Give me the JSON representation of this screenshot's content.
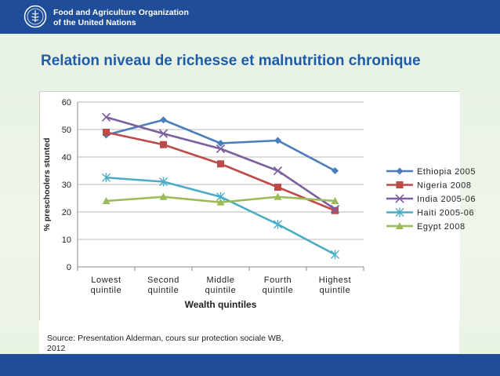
{
  "header": {
    "org_line1": "Food and Agriculture Organization",
    "org_line2": "of the United Nations",
    "logo_icon": "fao-logo-icon",
    "bar_color": "#1f4d9a"
  },
  "page_title": "Relation  niveau de richesse et malnutrition chronique",
  "source": {
    "line1": "Source: Presentation Alderman, cours sur protection sociale WB,",
    "line2": "2012"
  },
  "chart_data": {
    "type": "line",
    "xlabel": "Wealth quintiles",
    "ylabel": "% preschoolers stunted",
    "ylim": [
      0,
      60
    ],
    "yticks": [
      0,
      10,
      20,
      30,
      40,
      50,
      60
    ],
    "grid": true,
    "legend_position": "right",
    "categories": [
      [
        "Lowest",
        "quintile"
      ],
      [
        "Second",
        "quintile"
      ],
      [
        "Middle",
        "quintile"
      ],
      [
        "Fourth",
        "quintile"
      ],
      [
        "Highest",
        "quintile"
      ]
    ],
    "series": [
      {
        "name": "Ethiopia 2005",
        "values": [
          48,
          53.5,
          45,
          46,
          35
        ],
        "color": "#4a7ebb",
        "marker": "diamond"
      },
      {
        "name": "Nigeria 2008",
        "values": [
          49,
          44.5,
          37.5,
          29,
          20.5
        ],
        "color": "#be4b48",
        "marker": "square"
      },
      {
        "name": "India 2005-06",
        "values": [
          54.5,
          48.5,
          43,
          35,
          21
        ],
        "color": "#7d5fa0",
        "marker": "x"
      },
      {
        "name": "Haiti 2005-06",
        "values": [
          32.5,
          31,
          25.5,
          15.5,
          4.5
        ],
        "color": "#4bacc6",
        "marker": "star"
      },
      {
        "name": "Egypt 2008",
        "values": [
          24,
          25.5,
          23.5,
          25.5,
          24
        ],
        "color": "#9bbb59",
        "marker": "triangle"
      }
    ]
  }
}
